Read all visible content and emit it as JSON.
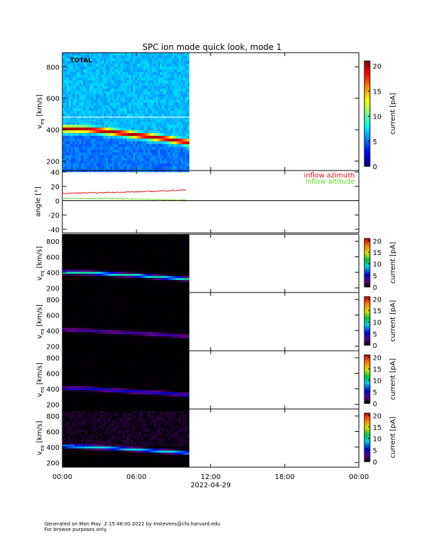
{
  "title": "SPC ion mode quick look, mode 1",
  "footer": {
    "line1": "Generated on Mon May  2 15:48:00 2022 by mstevens@cfa.harvard.edu",
    "line2": "For browse purposes only."
  },
  "chart_data": [
    {
      "type": "heatmap",
      "panel": "total",
      "label": "TOTAL",
      "ylabel": "v_eq [km/s]",
      "ylabel_main": "v",
      "ylabel_sub": "eq",
      "ylabel_units": "[km/s]",
      "ylim": [
        140,
        890
      ],
      "yticks": [
        200,
        400,
        600,
        800
      ],
      "xlim_hours": [
        0,
        24
      ],
      "data_end_hour": 10.0,
      "colorbar": {
        "label": "current [pA]",
        "range": [
          0,
          21
        ],
        "ticks": [
          0,
          5,
          10,
          15,
          20
        ]
      },
      "background": "#00d8a8",
      "beam_centers": [
        [
          0,
          405
        ],
        [
          2,
          402
        ],
        [
          4,
          385
        ],
        [
          6,
          365
        ],
        [
          8,
          345
        ],
        [
          10,
          320
        ]
      ],
      "beam_peak_pA": 17
    },
    {
      "type": "line",
      "panel": "angle",
      "ylabel": "angle [°]",
      "ylim": [
        -45,
        42
      ],
      "yticks": [
        -40,
        -20,
        0,
        20,
        40
      ],
      "zero_line": true,
      "series": [
        {
          "name": "inflow azimuth",
          "color": "#e01010",
          "x": [
            0,
            1,
            2,
            3,
            4,
            5,
            6,
            7,
            8,
            9,
            10
          ],
          "y": [
            10,
            10.5,
            10.8,
            11,
            11.5,
            12,
            12.2,
            12.8,
            13.5,
            14.2,
            15
          ]
        },
        {
          "name": "inflow altitude",
          "color": "#60d820",
          "x": [
            0,
            1,
            2,
            3,
            4,
            5,
            6,
            7,
            8,
            9,
            10
          ],
          "y": [
            3,
            3.2,
            3,
            2.8,
            2.5,
            2.6,
            2.2,
            2,
            1.5,
            1.2,
            1
          ]
        }
      ]
    },
    {
      "type": "heatmap",
      "panel": "cup1",
      "ylabel_main": "v",
      "ylabel_sub": "eq",
      "ylabel_units": "[km/s]",
      "ylim": [
        140,
        890
      ],
      "yticks": [
        200,
        400,
        600,
        800
      ],
      "colorbar": {
        "label": "current [pA]",
        "range": [
          0,
          21
        ],
        "ticks": [
          0,
          5,
          10,
          15,
          20
        ]
      },
      "beam_centers": [
        [
          0,
          400
        ],
        [
          2,
          395
        ],
        [
          4,
          375
        ],
        [
          6,
          360
        ],
        [
          8,
          335
        ],
        [
          10,
          315
        ]
      ],
      "beam_peak_pA": 10
    },
    {
      "type": "heatmap",
      "panel": "cup2",
      "ylabel_main": "v",
      "ylabel_sub": "eq",
      "ylabel_units": "[km/s]",
      "ylim": [
        140,
        890
      ],
      "yticks": [
        200,
        400,
        600,
        800
      ],
      "colorbar": {
        "label": "current [pA]",
        "range": [
          0,
          21
        ],
        "ticks": [
          0,
          5,
          10,
          15,
          20
        ]
      },
      "beam_centers": [
        [
          0,
          410
        ],
        [
          2,
          400
        ],
        [
          4,
          380
        ],
        [
          6,
          365
        ],
        [
          8,
          345
        ],
        [
          10,
          325
        ]
      ],
      "beam_peak_pA": 3.5
    },
    {
      "type": "heatmap",
      "panel": "cup3",
      "ylabel_main": "v",
      "ylabel_sub": "eq",
      "ylabel_units": "[km/s]",
      "ylim": [
        140,
        890
      ],
      "yticks": [
        200,
        400,
        600,
        800
      ],
      "colorbar": {
        "label": "current [pA]",
        "range": [
          0,
          21
        ],
        "ticks": [
          0,
          5,
          10,
          15,
          20
        ]
      },
      "beam_centers": [
        [
          0,
          405
        ],
        [
          2,
          400
        ],
        [
          4,
          380
        ],
        [
          6,
          360
        ],
        [
          8,
          345
        ],
        [
          10,
          320
        ]
      ],
      "beam_peak_pA": 5
    },
    {
      "type": "heatmap",
      "panel": "cup4",
      "ylabel_main": "v",
      "ylabel_sub": "eq",
      "ylabel_units": "[km/s]",
      "ylim": [
        140,
        890
      ],
      "yticks": [
        200,
        400,
        600,
        800
      ],
      "colorbar": {
        "label": "current [pA]",
        "range": [
          0,
          21
        ],
        "ticks": [
          0,
          5,
          10,
          15,
          20
        ]
      },
      "beam_centers": [
        [
          0,
          410
        ],
        [
          2,
          400
        ],
        [
          4,
          385
        ],
        [
          6,
          365
        ],
        [
          8,
          345
        ],
        [
          10,
          325
        ]
      ],
      "beam_peak_pA": 9
    }
  ],
  "xaxis": {
    "tick_labels": [
      "00:00",
      "06:00",
      "12:00",
      "18:00",
      "00:00"
    ],
    "tick_hours": [
      0,
      6,
      12,
      18,
      24
    ],
    "date_label": "2022-04-29"
  }
}
